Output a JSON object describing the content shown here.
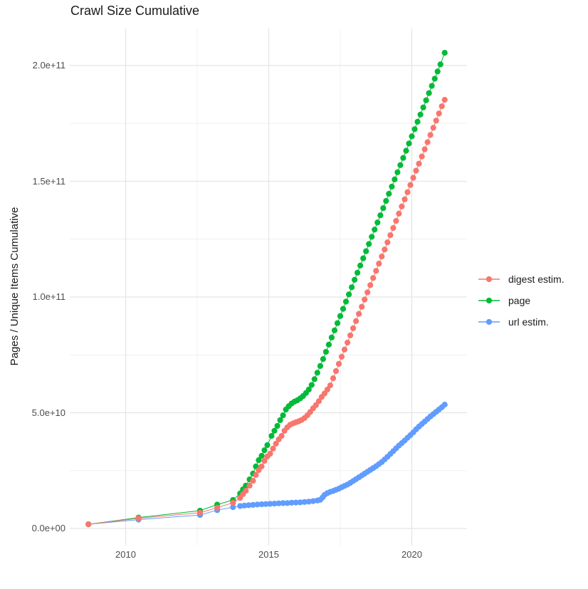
{
  "chart_data": {
    "type": "scatter",
    "title": "Crawl Size Cumulative",
    "xlabel": "",
    "ylabel": "Pages / Unique Items Cumulative",
    "value_unit": "1e9 (billions of pages / items)",
    "x_ticks": [
      {
        "label": "2010",
        "value": 2010
      },
      {
        "label": "2015",
        "value": 2015
      },
      {
        "label": "2020",
        "value": 2020
      }
    ],
    "y_ticks": [
      {
        "label": "0.0e+00",
        "value": 0
      },
      {
        "label": "5.0e+10",
        "value": 50
      },
      {
        "label": "1.0e+11",
        "value": 100
      },
      {
        "label": "1.5e+11",
        "value": 150
      },
      {
        "label": "2.0e+11",
        "value": 200
      }
    ],
    "x_minor": [
      2012.5,
      2017.5
    ],
    "y_minor": [
      25,
      75,
      125,
      175
    ],
    "xlim": [
      2008.05,
      2021.85
    ],
    "ylim_e9": [
      -7,
      216
    ],
    "grid": true,
    "legend_position": "right",
    "colors": {
      "digest": "#F8766D",
      "page": "#00BA38",
      "url": "#619CFF",
      "grid_major": "#e5e5e5",
      "grid_minor": "#f0f0f0",
      "axis_text": "#4d4d4d",
      "title_text": "#1a1a1a",
      "background": "#ffffff"
    },
    "series": [
      {
        "name": "digest estim.",
        "key": "digest",
        "color": "#F8766D",
        "points": [
          [
            2008.7,
            1.8
          ],
          [
            2010.45,
            4.4
          ],
          [
            2012.6,
            6.8
          ],
          [
            2013.2,
            9.0
          ],
          [
            2013.75,
            11.1
          ],
          [
            2014.0,
            13.2
          ],
          [
            2014.1,
            14.8
          ],
          [
            2014.2,
            16.3
          ],
          [
            2014.33,
            18.5
          ],
          [
            2014.45,
            20.6
          ],
          [
            2014.55,
            23.1
          ],
          [
            2014.65,
            25.2
          ],
          [
            2014.75,
            26.8
          ],
          [
            2014.85,
            29.2
          ],
          [
            2014.95,
            31.1
          ],
          [
            2015.05,
            32.3
          ],
          [
            2015.15,
            34.5
          ],
          [
            2015.25,
            36.6
          ],
          [
            2015.35,
            38.5
          ],
          [
            2015.45,
            40.0
          ],
          [
            2015.55,
            42.2
          ],
          [
            2015.65,
            43.7
          ],
          [
            2015.75,
            44.8
          ],
          [
            2015.85,
            45.4
          ],
          [
            2015.95,
            45.9
          ],
          [
            2016.05,
            46.3
          ],
          [
            2016.15,
            46.9
          ],
          [
            2016.25,
            47.7
          ],
          [
            2016.35,
            48.9
          ],
          [
            2016.45,
            50.3
          ],
          [
            2016.55,
            51.9
          ],
          [
            2016.65,
            53.3
          ],
          [
            2016.75,
            55.0
          ],
          [
            2016.85,
            56.8
          ],
          [
            2016.95,
            58.3
          ],
          [
            2017.05,
            60.0
          ],
          [
            2017.15,
            61.8
          ],
          [
            2017.25,
            64.9
          ],
          [
            2017.35,
            68.0
          ],
          [
            2017.45,
            71.1
          ],
          [
            2017.55,
            74.2
          ],
          [
            2017.65,
            77.3
          ],
          [
            2017.75,
            80.3
          ],
          [
            2017.85,
            83.4
          ],
          [
            2017.95,
            86.5
          ],
          [
            2018.05,
            89.6
          ],
          [
            2018.15,
            92.7
          ],
          [
            2018.25,
            95.8
          ],
          [
            2018.35,
            98.9
          ],
          [
            2018.45,
            102.0
          ],
          [
            2018.55,
            105.1
          ],
          [
            2018.65,
            108.2
          ],
          [
            2018.75,
            111.3
          ],
          [
            2018.85,
            114.4
          ],
          [
            2018.95,
            117.5
          ],
          [
            2019.05,
            120.5
          ],
          [
            2019.15,
            123.6
          ],
          [
            2019.25,
            126.7
          ],
          [
            2019.35,
            129.8
          ],
          [
            2019.45,
            132.9
          ],
          [
            2019.55,
            136.0
          ],
          [
            2019.65,
            139.1
          ],
          [
            2019.75,
            142.2
          ],
          [
            2019.85,
            145.3
          ],
          [
            2019.95,
            148.4
          ],
          [
            2020.05,
            151.5
          ],
          [
            2020.15,
            154.6
          ],
          [
            2020.25,
            157.6
          ],
          [
            2020.35,
            160.7
          ],
          [
            2020.45,
            163.8
          ],
          [
            2020.55,
            166.9
          ],
          [
            2020.65,
            170.0
          ],
          [
            2020.75,
            173.1
          ],
          [
            2020.85,
            176.2
          ],
          [
            2020.95,
            179.3
          ],
          [
            2021.05,
            182.4
          ],
          [
            2021.15,
            185.2
          ]
        ]
      },
      {
        "name": "page",
        "key": "page",
        "color": "#00BA38",
        "points": [
          [
            2008.7,
            1.8
          ],
          [
            2010.45,
            4.7
          ],
          [
            2012.6,
            7.7
          ],
          [
            2013.2,
            10.3
          ],
          [
            2013.75,
            12.3
          ],
          [
            2014.0,
            15.1
          ],
          [
            2014.1,
            16.9
          ],
          [
            2014.2,
            18.5
          ],
          [
            2014.33,
            21.2
          ],
          [
            2014.45,
            23.7
          ],
          [
            2014.55,
            26.8
          ],
          [
            2014.65,
            29.5
          ],
          [
            2014.75,
            31.4
          ],
          [
            2014.85,
            33.8
          ],
          [
            2014.95,
            36.0
          ],
          [
            2015.1,
            40.0
          ],
          [
            2015.2,
            42.2
          ],
          [
            2015.3,
            44.3
          ],
          [
            2015.4,
            46.8
          ],
          [
            2015.5,
            48.9
          ],
          [
            2015.6,
            51.4
          ],
          [
            2015.7,
            52.8
          ],
          [
            2015.8,
            54.0
          ],
          [
            2015.9,
            54.8
          ],
          [
            2016.0,
            55.4
          ],
          [
            2016.1,
            56.2
          ],
          [
            2016.2,
            57.2
          ],
          [
            2016.3,
            58.5
          ],
          [
            2016.4,
            60.0
          ],
          [
            2016.5,
            62.0
          ],
          [
            2016.6,
            64.5
          ],
          [
            2016.7,
            67.3
          ],
          [
            2016.8,
            70.2
          ],
          [
            2016.9,
            73.2
          ],
          [
            2017.0,
            76.3
          ],
          [
            2017.1,
            79.4
          ],
          [
            2017.2,
            82.5
          ],
          [
            2017.3,
            85.6
          ],
          [
            2017.4,
            88.7
          ],
          [
            2017.5,
            91.8
          ],
          [
            2017.6,
            94.9
          ],
          [
            2017.7,
            98.0
          ],
          [
            2017.8,
            101.1
          ],
          [
            2017.9,
            104.2
          ],
          [
            2018.0,
            107.4
          ],
          [
            2018.1,
            110.5
          ],
          [
            2018.2,
            113.6
          ],
          [
            2018.3,
            116.7
          ],
          [
            2018.4,
            119.8
          ],
          [
            2018.5,
            122.9
          ],
          [
            2018.6,
            126.0
          ],
          [
            2018.7,
            129.1
          ],
          [
            2018.8,
            132.2
          ],
          [
            2018.9,
            135.3
          ],
          [
            2019.0,
            138.4
          ],
          [
            2019.1,
            141.5
          ],
          [
            2019.2,
            144.6
          ],
          [
            2019.3,
            147.7
          ],
          [
            2019.4,
            150.8
          ],
          [
            2019.5,
            153.9
          ],
          [
            2019.6,
            157.0
          ],
          [
            2019.7,
            160.1
          ],
          [
            2019.8,
            163.2
          ],
          [
            2019.9,
            166.3
          ],
          [
            2020.0,
            169.4
          ],
          [
            2020.1,
            172.5
          ],
          [
            2020.2,
            175.7
          ],
          [
            2020.3,
            178.8
          ],
          [
            2020.4,
            181.9
          ],
          [
            2020.5,
            185.0
          ],
          [
            2020.6,
            188.1
          ],
          [
            2020.7,
            191.2
          ],
          [
            2020.8,
            194.3
          ],
          [
            2020.9,
            197.4
          ],
          [
            2021.0,
            200.5
          ],
          [
            2021.15,
            205.5
          ]
        ]
      },
      {
        "name": "url estim.",
        "key": "url",
        "color": "#619CFF",
        "points": [
          [
            2008.7,
            1.8
          ],
          [
            2010.45,
            3.8
          ],
          [
            2012.6,
            5.8
          ],
          [
            2013.2,
            7.9
          ],
          [
            2013.75,
            9.2
          ],
          [
            2014.0,
            9.7
          ],
          [
            2014.15,
            9.9
          ],
          [
            2014.3,
            10.05
          ],
          [
            2014.45,
            10.2
          ],
          [
            2014.6,
            10.35
          ],
          [
            2014.75,
            10.45
          ],
          [
            2014.9,
            10.55
          ],
          [
            2015.05,
            10.65
          ],
          [
            2015.2,
            10.75
          ],
          [
            2015.35,
            10.85
          ],
          [
            2015.5,
            10.95
          ],
          [
            2015.65,
            11.0
          ],
          [
            2015.8,
            11.1
          ],
          [
            2015.95,
            11.2
          ],
          [
            2016.1,
            11.3
          ],
          [
            2016.25,
            11.45
          ],
          [
            2016.4,
            11.6
          ],
          [
            2016.55,
            11.8
          ],
          [
            2016.7,
            12.1
          ],
          [
            2016.8,
            12.4
          ],
          [
            2016.88,
            13.4
          ],
          [
            2016.95,
            14.5
          ],
          [
            2017.05,
            15.3
          ],
          [
            2017.15,
            15.8
          ],
          [
            2017.25,
            16.2
          ],
          [
            2017.35,
            16.7
          ],
          [
            2017.45,
            17.2
          ],
          [
            2017.55,
            17.8
          ],
          [
            2017.65,
            18.4
          ],
          [
            2017.75,
            19.0
          ],
          [
            2017.85,
            19.7
          ],
          [
            2017.95,
            20.5
          ],
          [
            2018.05,
            21.3
          ],
          [
            2018.15,
            22.1
          ],
          [
            2018.25,
            22.9
          ],
          [
            2018.35,
            23.7
          ],
          [
            2018.45,
            24.5
          ],
          [
            2018.55,
            25.3
          ],
          [
            2018.65,
            26.1
          ],
          [
            2018.75,
            26.9
          ],
          [
            2018.85,
            27.8
          ],
          [
            2018.95,
            28.7
          ],
          [
            2019.05,
            29.8
          ],
          [
            2019.15,
            31.0
          ],
          [
            2019.25,
            32.2
          ],
          [
            2019.35,
            33.4
          ],
          [
            2019.45,
            34.6
          ],
          [
            2019.55,
            35.8
          ],
          [
            2019.65,
            36.9
          ],
          [
            2019.75,
            38.0
          ],
          [
            2019.85,
            39.2
          ],
          [
            2019.95,
            40.3
          ],
          [
            2020.05,
            41.5
          ],
          [
            2020.15,
            42.8
          ],
          [
            2020.25,
            44.0
          ],
          [
            2020.35,
            45.1
          ],
          [
            2020.45,
            46.2
          ],
          [
            2020.55,
            47.3
          ],
          [
            2020.65,
            48.4
          ],
          [
            2020.75,
            49.4
          ],
          [
            2020.85,
            50.4
          ],
          [
            2020.95,
            51.4
          ],
          [
            2021.05,
            52.4
          ],
          [
            2021.15,
            53.5
          ]
        ]
      }
    ]
  }
}
